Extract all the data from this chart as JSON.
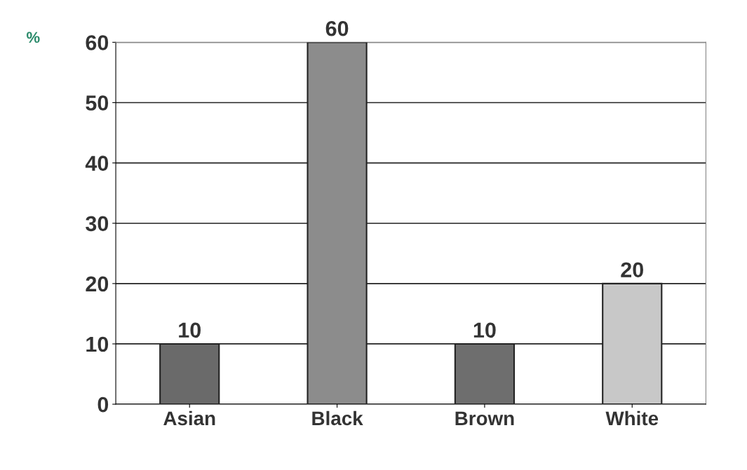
{
  "chart_data": {
    "type": "bar",
    "ylabel": "%",
    "categories": [
      "Asian",
      "Black",
      "Brown",
      "White"
    ],
    "values": [
      10,
      60,
      10,
      20
    ],
    "colors": [
      "#6a6a6a",
      "#8c8c8c",
      "#6e6e6e",
      "#c8c8c8"
    ],
    "ylim": [
      0,
      60
    ],
    "yticks": [
      0,
      10,
      20,
      30,
      40,
      50,
      60
    ],
    "grid": "y",
    "data_labels": true
  }
}
